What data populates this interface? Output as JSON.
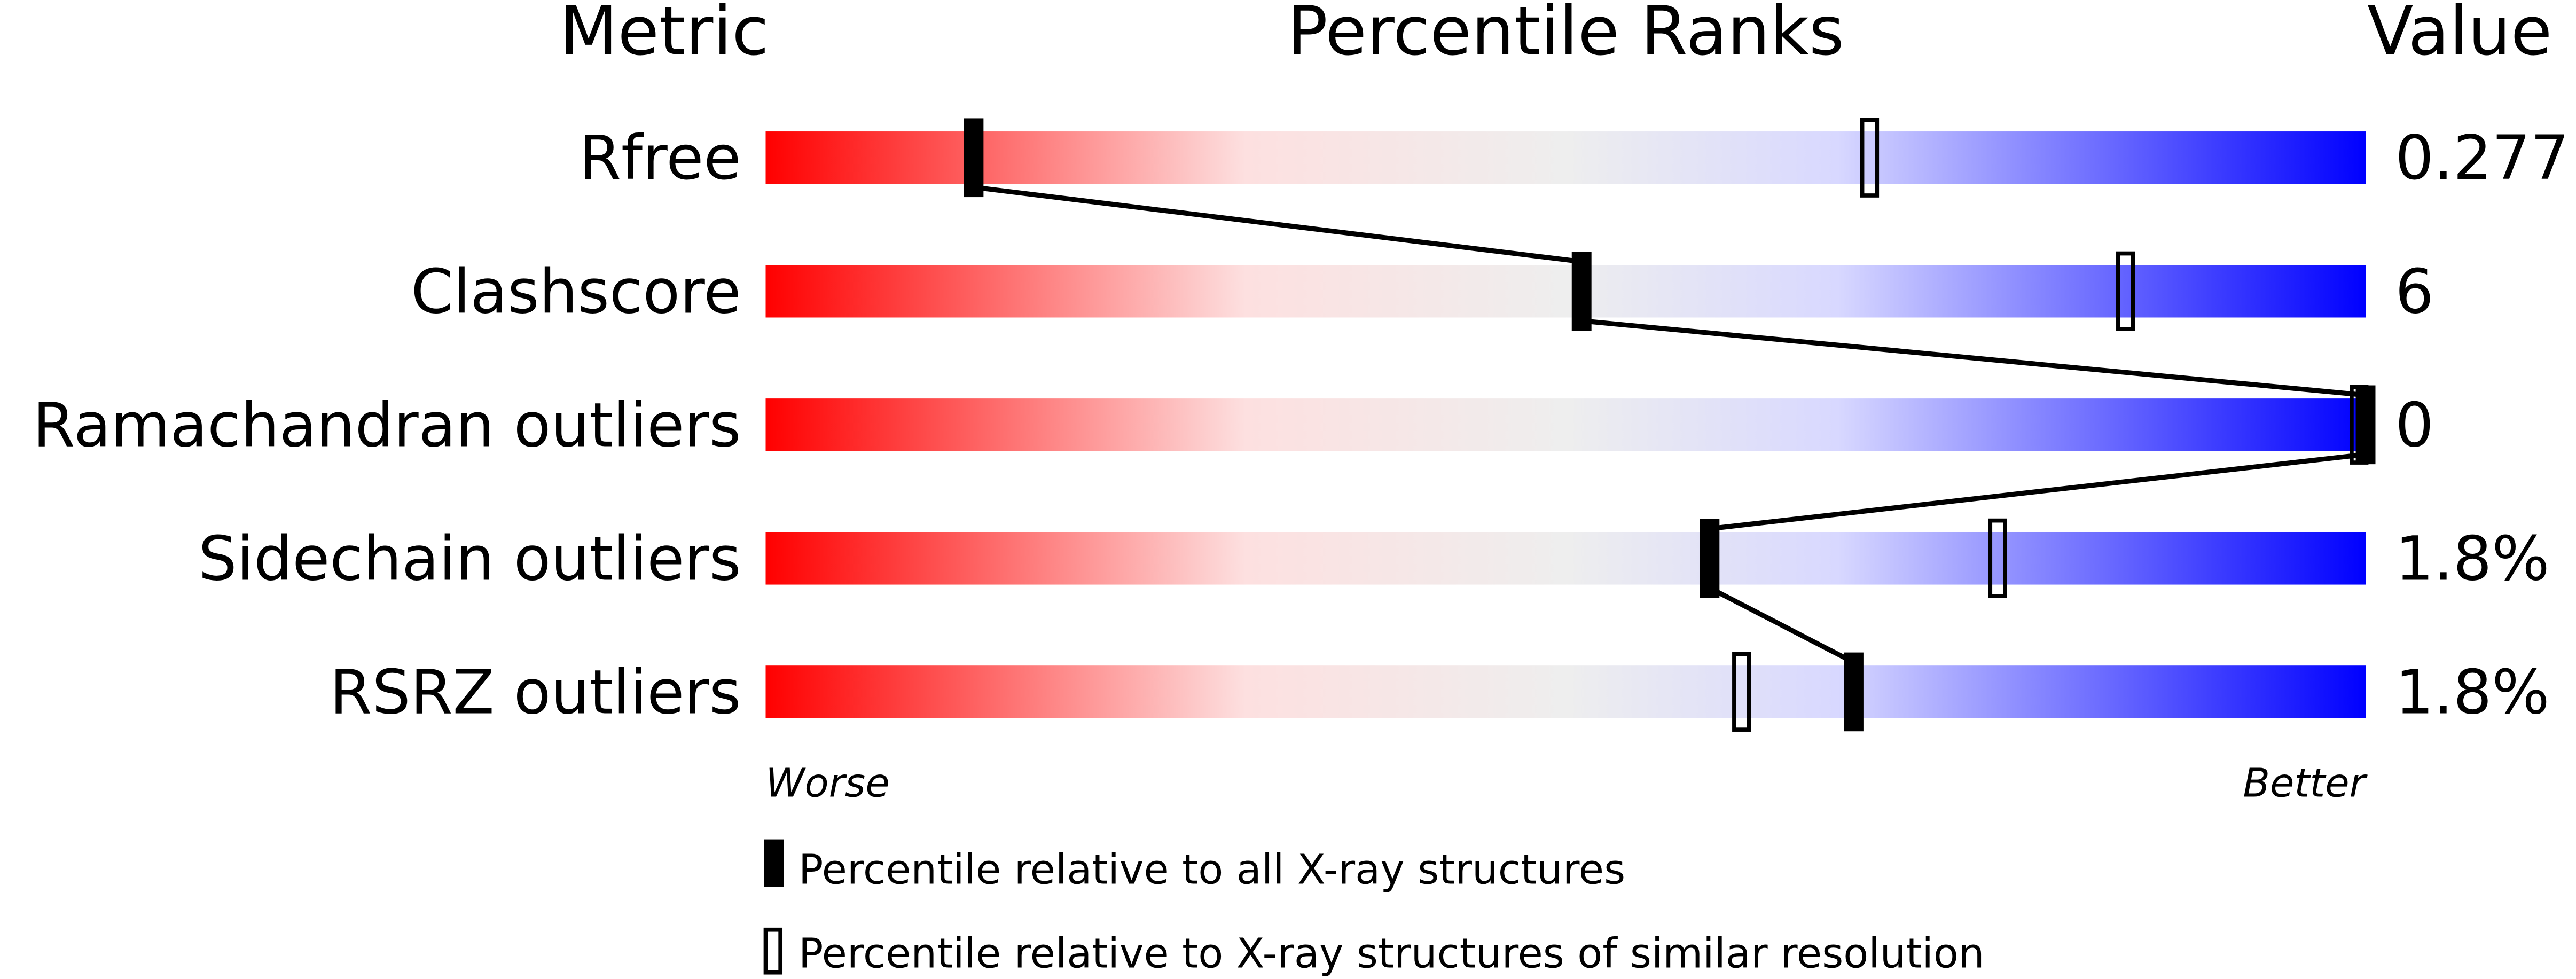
{
  "chart_data": {
    "type": "percentile-bar",
    "headers": {
      "metric": "Metric",
      "ranks": "Percentile Ranks",
      "value": "Value"
    },
    "xlim": [
      0,
      100
    ],
    "axis_labels": {
      "left": "Worse",
      "right": "Better"
    },
    "gradient_colors": [
      "#ff0000",
      "#fde0e0",
      "#eeeeee",
      "#d8d8ff",
      "#0000ff"
    ],
    "metrics": [
      {
        "name": "Rfree",
        "value": "0.277",
        "percentile_all": 13,
        "percentile_similar": 69
      },
      {
        "name": "Clashscore",
        "value": "6",
        "percentile_all": 51,
        "percentile_similar": 85
      },
      {
        "name": "Ramachandran outliers",
        "value": "0",
        "percentile_all": 100,
        "percentile_similar": 100
      },
      {
        "name": "Sidechain outliers",
        "value": "1.8%",
        "percentile_all": 59,
        "percentile_similar": 77
      },
      {
        "name": "RSRZ outliers",
        "value": "1.8%",
        "percentile_all": 68,
        "percentile_similar": 61
      }
    ],
    "legend": [
      {
        "marker": "filled",
        "label": "Percentile relative to all X-ray structures"
      },
      {
        "marker": "hollow",
        "label": "Percentile relative to X-ray structures of similar resolution"
      }
    ]
  }
}
